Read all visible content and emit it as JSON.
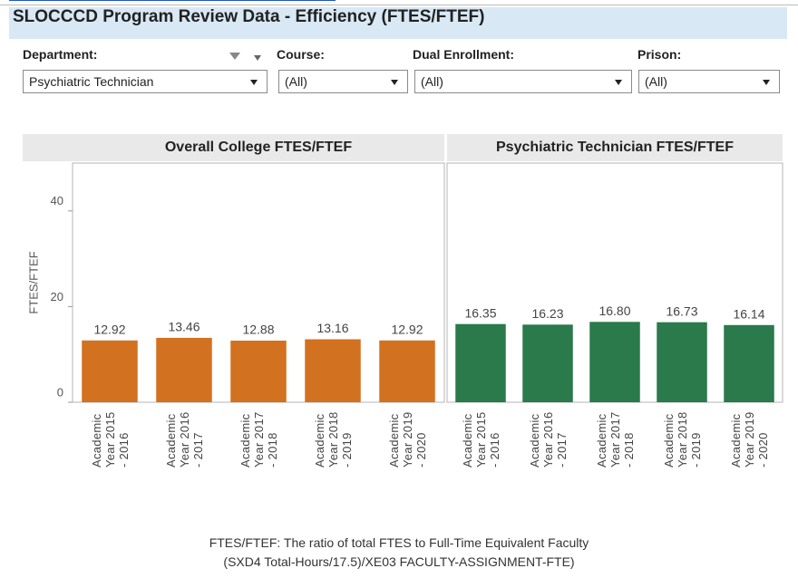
{
  "header": {
    "title": "SLOCCCD Program Review Data - Efficiency (FTES/FTEF)"
  },
  "filters": [
    {
      "label": "Department:",
      "value": "Psychiatric Technician"
    },
    {
      "label": "Course:",
      "value": "(All)"
    },
    {
      "label": "Dual Enrollment:",
      "value": "(All)"
    },
    {
      "label": "Prison:",
      "value": "(All)"
    }
  ],
  "chart_data": [
    {
      "type": "bar",
      "title": "Overall College FTES/FTEF",
      "ylabel": "FTES/FTEF",
      "categories": [
        "Academic Year 2015 - 2016",
        "Academic Year 2016 - 2017",
        "Academic Year 2017 - 2018",
        "Academic Year 2018 - 2019",
        "Academic Year 2019 - 2020"
      ],
      "values": [
        12.92,
        13.46,
        12.88,
        13.16,
        12.92
      ],
      "color": "#d2711f",
      "ylim": [
        0,
        50
      ],
      "yticks": [
        0,
        20,
        40
      ]
    },
    {
      "type": "bar",
      "title": "Psychiatric Technician FTES/FTEF",
      "categories": [
        "Academic Year 2015 - 2016",
        "Academic Year 2016 - 2017",
        "Academic Year 2017 - 2018",
        "Academic Year 2018 - 2019",
        "Academic Year 2019 - 2020"
      ],
      "values": [
        16.35,
        16.23,
        16.8,
        16.73,
        16.14
      ],
      "value_labels": [
        "16.35",
        "16.23",
        "16.80",
        "16.73",
        "16.14"
      ],
      "color": "#2a7a4b",
      "ylim": [
        0,
        50
      ]
    }
  ],
  "footnote": [
    "FTES/FTEF: The ratio of total FTES to Full-Time Equivalent Faculty",
    "(SXD4 Total-Hours/17.5)/XE03 FACULTY-ASSIGNMENT-FTE)"
  ]
}
